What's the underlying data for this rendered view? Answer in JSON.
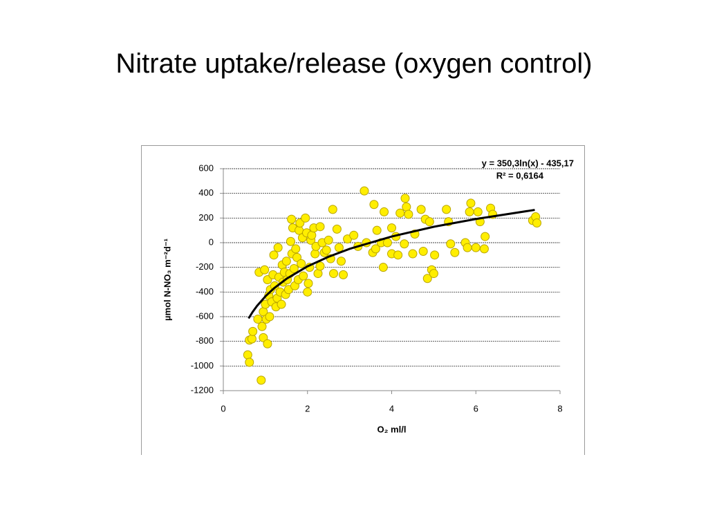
{
  "title": "Nitrate uptake/release (oxygen control)",
  "chart_data": {
    "type": "scatter",
    "x_label": "O₂ ml/l",
    "y_label": "µmol N-NO₃ m⁻²d⁻¹",
    "annotations": [
      "y = 350,3ln(x) - 435,17",
      "R² = 0,6164"
    ],
    "color": "#ffee00",
    "edge_color": "#b8a400",
    "xlim": [
      0,
      8
    ],
    "xticks": [
      0,
      2,
      4,
      6,
      8
    ],
    "ylim": [
      -1200,
      600
    ],
    "yticks": [
      -1200,
      -1000,
      -800,
      -600,
      -400,
      -200,
      0,
      200,
      400,
      600
    ],
    "grid": true,
    "x": [
      0.58,
      0.62,
      0.62,
      0.68,
      0.7,
      0.82,
      0.85,
      0.9,
      0.92,
      0.95,
      0.95,
      0.98,
      1.0,
      1.02,
      1.05,
      1.05,
      1.08,
      1.1,
      1.12,
      1.15,
      1.18,
      1.2,
      1.22,
      1.25,
      1.28,
      1.3,
      1.32,
      1.35,
      1.38,
      1.4,
      1.42,
      1.45,
      1.48,
      1.5,
      1.52,
      1.55,
      1.58,
      1.6,
      1.62,
      1.63,
      1.65,
      1.68,
      1.7,
      1.72,
      1.75,
      1.78,
      1.8,
      1.82,
      1.85,
      1.88,
      1.9,
      1.95,
      1.98,
      2.0,
      2.02,
      2.05,
      2.08,
      2.1,
      2.15,
      2.18,
      2.2,
      2.25,
      2.3,
      2.3,
      2.35,
      2.4,
      2.45,
      2.5,
      2.55,
      2.6,
      2.62,
      2.7,
      2.75,
      2.8,
      2.85,
      2.95,
      3.1,
      3.2,
      3.35,
      3.4,
      3.55,
      3.58,
      3.62,
      3.65,
      3.75,
      3.8,
      3.82,
      3.9,
      4.0,
      4.0,
      4.1,
      4.15,
      4.2,
      4.3,
      4.32,
      4.35,
      4.4,
      4.5,
      4.55,
      4.7,
      4.75,
      4.8,
      4.85,
      4.9,
      4.95,
      5.0,
      5.02,
      5.3,
      5.35,
      5.4,
      5.5,
      5.75,
      5.8,
      5.85,
      5.88,
      6.0,
      6.05,
      6.1,
      6.2,
      6.22,
      6.35,
      6.4,
      7.35,
      7.42,
      7.45
    ],
    "values": [
      -910,
      -970,
      -790,
      -780,
      -720,
      -620,
      -240,
      -1115,
      -680,
      -770,
      -560,
      -220,
      -500,
      -620,
      -820,
      -300,
      -430,
      -600,
      -380,
      -480,
      -260,
      -100,
      -350,
      -520,
      -450,
      -40,
      -280,
      -400,
      -500,
      -180,
      -320,
      -240,
      -420,
      -150,
      -300,
      -380,
      -250,
      10,
      190,
      -90,
      120,
      -210,
      -350,
      -50,
      -120,
      -300,
      100,
      160,
      -170,
      40,
      -270,
      200,
      80,
      -400,
      -330,
      -200,
      20,
      60,
      120,
      -90,
      -30,
      -250,
      130,
      -190,
      0,
      -80,
      -60,
      20,
      -130,
      270,
      -250,
      110,
      -40,
      -150,
      -260,
      30,
      60,
      -30,
      420,
      0,
      -80,
      310,
      -50,
      100,
      0,
      -200,
      250,
      0,
      -90,
      120,
      50,
      -100,
      240,
      -10,
      360,
      290,
      230,
      -90,
      70,
      270,
      -70,
      190,
      -290,
      170,
      -220,
      -250,
      -100,
      270,
      170,
      -10,
      -80,
      0,
      -40,
      250,
      320,
      -40,
      250,
      170,
      -50,
      50,
      280,
      230,
      180,
      210,
      160
    ],
    "trendline": {
      "color": "#000000",
      "x": [
        0.6,
        0.7,
        0.8,
        1,
        1.2,
        1.5,
        2,
        2.5,
        3,
        4,
        5,
        6,
        7.4
      ],
      "values": [
        -614,
        -560,
        -513,
        -435,
        -371,
        -293,
        -192,
        -114,
        -50,
        50,
        129,
        192,
        266
      ]
    }
  }
}
